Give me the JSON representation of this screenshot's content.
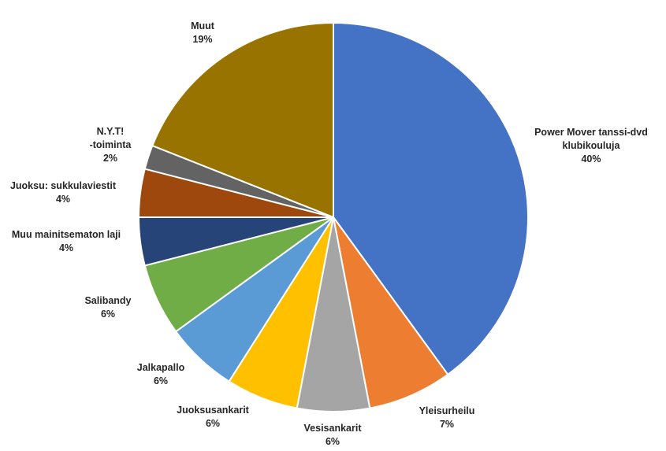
{
  "chart_data": {
    "type": "pie",
    "title": "",
    "start_angle_deg": 0,
    "direction": "clockwise",
    "slice_border_color": "#ffffff",
    "slices": [
      {
        "label_lines": [
          "Power Mover tanssi-dvd",
          "klubikouluja"
        ],
        "value_label": "40%",
        "value": 40,
        "color": "#4472C4"
      },
      {
        "label_lines": [
          "Yleisurheilu"
        ],
        "value_label": "7%",
        "value": 7,
        "color": "#ED7D31"
      },
      {
        "label_lines": [
          "Vesisankarit"
        ],
        "value_label": "6%",
        "value": 6,
        "color": "#A5A5A5"
      },
      {
        "label_lines": [
          "Juoksusankarit"
        ],
        "value_label": "6%",
        "value": 6,
        "color": "#FFC000"
      },
      {
        "label_lines": [
          "Jalkapallo"
        ],
        "value_label": "6%",
        "value": 6,
        "color": "#5B9BD5"
      },
      {
        "label_lines": [
          "Salibandy"
        ],
        "value_label": "6%",
        "value": 6,
        "color": "#70AD47"
      },
      {
        "label_lines": [
          "Muu mainitsematon laji"
        ],
        "value_label": "4%",
        "value": 4,
        "color": "#264478"
      },
      {
        "label_lines": [
          "Juoksu: sukkulaviestit"
        ],
        "value_label": "4%",
        "value": 4,
        "color": "#9E480E"
      },
      {
        "label_lines": [
          "N.Y.T!",
          "-toiminta"
        ],
        "value_label": "2%",
        "value": 2,
        "color": "#636363"
      },
      {
        "label_lines": [
          "Muut"
        ],
        "value_label": "19%",
        "value": 19,
        "color": "#997300"
      }
    ]
  }
}
